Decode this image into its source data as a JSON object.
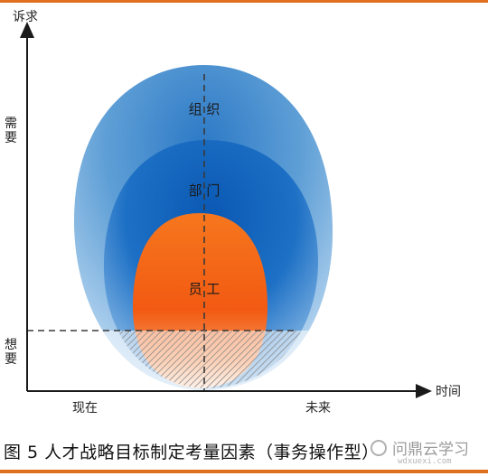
{
  "axes": {
    "y_axis_label": "诉求",
    "x_axis_label": "时间",
    "y_upper_label": "需要",
    "y_lower_label": "想要",
    "x_left_label": "现在",
    "x_right_label": "未来"
  },
  "layers": {
    "outer": "组 织",
    "middle": "部 门",
    "inner": "员 工"
  },
  "colors": {
    "accent_rule": "#e0701f",
    "outer_ring": "#5d9fd6",
    "middle_ring": "#1a6fc4",
    "inner_core": "#f25a12"
  },
  "caption": "图 5 人才战略目标制定考量因素（事务操作型）",
  "watermark": {
    "text": "问鼎云学习",
    "domain": "wdxuexi.com"
  }
}
